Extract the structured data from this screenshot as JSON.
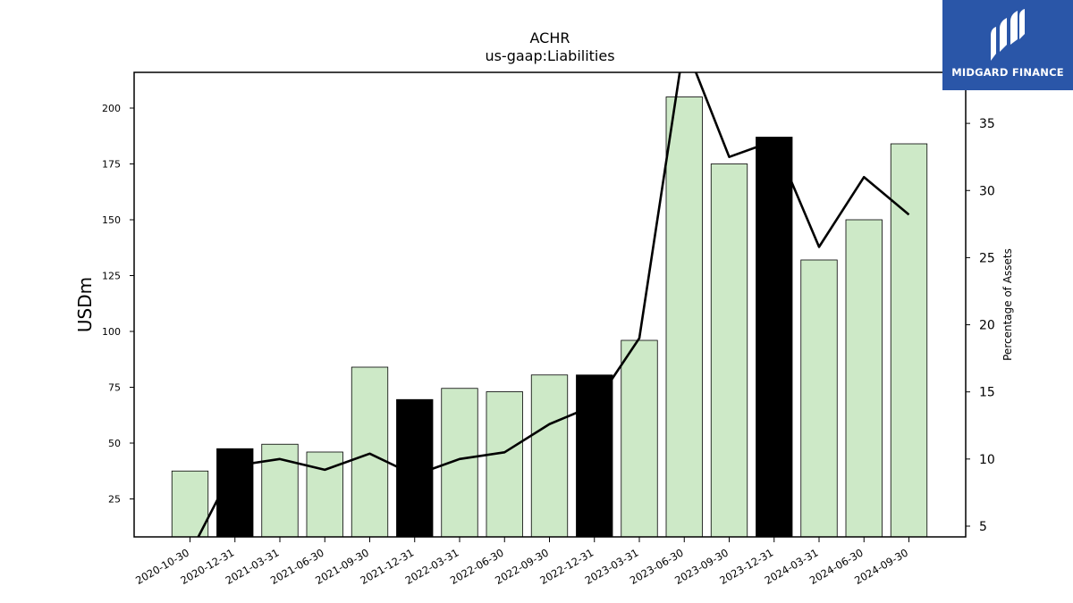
{
  "chart_data": {
    "type": "bar",
    "title": "ACHR",
    "subtitle": "us-gaap:Liabilities",
    "ylabel": "USDm",
    "y2label": "Percentage of Assets",
    "categories": [
      "2020-10-30",
      "2020-12-31",
      "2021-03-31",
      "2021-06-30",
      "2021-09-30",
      "2021-12-31",
      "2022-03-31",
      "2022-06-30",
      "2022-09-30",
      "2022-12-31",
      "2023-03-31",
      "2023-06-30",
      "2023-09-30",
      "2023-12-31",
      "2024-03-31",
      "2024-06-30",
      "2024-09-30"
    ],
    "series": [
      {
        "type": "bar",
        "values": [
          37.5,
          47.5,
          49.5,
          46,
          84,
          69.5,
          74.5,
          73,
          80.5,
          80.5,
          96,
          205,
          175,
          187,
          132,
          150,
          184
        ],
        "highlight": [
          false,
          true,
          false,
          false,
          false,
          true,
          false,
          false,
          false,
          true,
          false,
          false,
          false,
          true,
          false,
          false,
          false
        ]
      },
      {
        "type": "line",
        "axis": "right",
        "values": [
          3.0,
          9.5,
          10.0,
          9.2,
          10.4,
          8.8,
          10.0,
          10.5,
          12.6,
          14.0,
          19.0,
          41.0,
          32.5,
          33.7,
          25.8,
          31.0,
          28.2
        ]
      }
    ],
    "ylim": [
      8,
      216
    ],
    "y2lim": [
      4.2,
      38.8
    ],
    "yticks": [
      25,
      50,
      75,
      100,
      125,
      150,
      175,
      200
    ],
    "y2ticks": [
      5,
      10,
      15,
      20,
      25,
      30,
      35
    ],
    "colors": {
      "bar": "#cde9c7",
      "bar_highlight": "#000000",
      "line": "#000000"
    }
  },
  "logo": {
    "text": "MIDGARD FINANCE",
    "color": "#2a56a8"
  }
}
